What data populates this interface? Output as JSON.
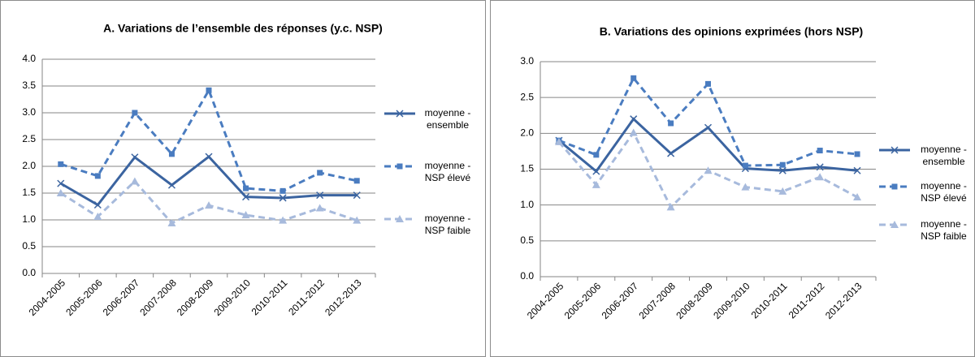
{
  "chart_data": [
    {
      "type": "line",
      "title": "A. Variations de l’ensemble des réponses (y.c. NSP)",
      "categories": [
        "2004-2005",
        "2005-2006",
        "2006-2007",
        "2007-2008",
        "2008-2009",
        "2009-2010",
        "2010-2011",
        "2011-2012",
        "2012-2013"
      ],
      "series": [
        {
          "name": "moyenne - ensemble",
          "color": "#3b64a0",
          "dashed": false,
          "marker": "x",
          "values": [
            1.68,
            1.28,
            2.17,
            1.65,
            2.18,
            1.43,
            1.41,
            1.46,
            1.46
          ]
        },
        {
          "name": "moyenne - NSP élevé",
          "color": "#4a7cc0",
          "dashed": true,
          "marker": "square",
          "values": [
            2.04,
            1.82,
            3.0,
            2.23,
            3.42,
            1.59,
            1.54,
            1.88,
            1.73
          ]
        },
        {
          "name": "moyenne - NSP faible",
          "color": "#a7badc",
          "dashed": true,
          "marker": "triangle",
          "values": [
            1.5,
            1.06,
            1.72,
            0.94,
            1.27,
            1.09,
            0.99,
            1.22,
            0.99
          ]
        }
      ],
      "ylim": [
        0,
        4
      ],
      "yticks": [
        {
          "value": 0,
          "label": "0.0"
        },
        0.5,
        {
          "value": 1,
          "label": "1.0"
        },
        1.5,
        {
          "value": 2,
          "label": "2.0"
        },
        2.5,
        {
          "value": 3,
          "label": "3.0"
        },
        3.5,
        {
          "value": 4,
          "label": "4.0"
        }
      ],
      "grid": true,
      "legend": "right"
    },
    {
      "type": "line",
      "title": "B. Variations des opinions exprimées (hors NSP)",
      "categories": [
        "2004-2005",
        "2005-2006",
        "2006-2007",
        "2007-2008",
        "2008-2009",
        "2009-2010",
        "2010-2011",
        "2011-2012",
        "2012-2013"
      ],
      "series": [
        {
          "name": "moyenne - ensemble",
          "color": "#3b64a0",
          "dashed": false,
          "marker": "x",
          "values": [
            1.9,
            1.47,
            2.2,
            1.72,
            2.08,
            1.51,
            1.48,
            1.53,
            1.48
          ]
        },
        {
          "name": "moyenne - NSP élevé",
          "color": "#4a7cc0",
          "dashed": true,
          "marker": "square",
          "values": [
            1.9,
            1.7,
            2.77,
            2.14,
            2.69,
            1.55,
            1.56,
            1.76,
            1.71
          ]
        },
        {
          "name": "moyenne - NSP faible",
          "color": "#a7badc",
          "dashed": true,
          "marker": "triangle",
          "values": [
            1.88,
            1.28,
            2.01,
            0.97,
            1.48,
            1.25,
            1.19,
            1.39,
            1.11
          ]
        }
      ],
      "ylim": [
        0,
        3
      ],
      "yticks": [
        {
          "value": 0,
          "label": "0.0"
        },
        0.5,
        {
          "value": 1,
          "label": "1.0"
        },
        1.5,
        {
          "value": 2,
          "label": "2.0"
        },
        2.5,
        {
          "value": 3,
          "label": "3.0"
        }
      ],
      "grid": true,
      "legend": "right"
    }
  ]
}
